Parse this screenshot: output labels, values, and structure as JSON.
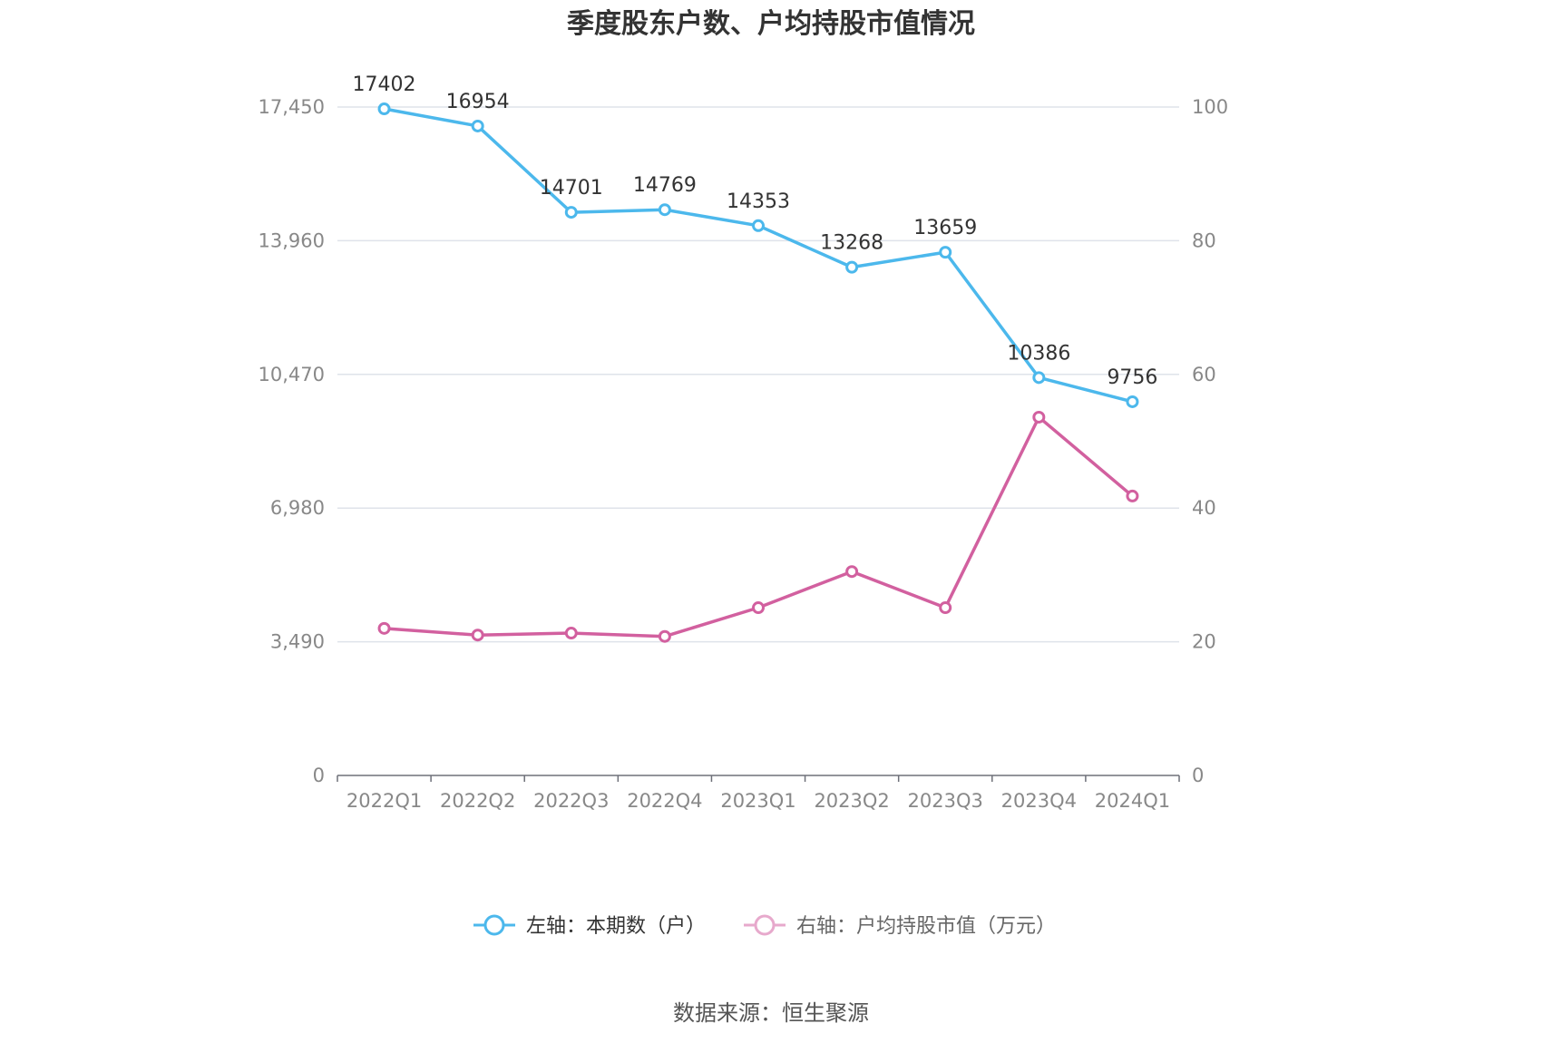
{
  "chart_data": {
    "type": "line",
    "title": "季度股东户数、户均持股市值情况",
    "categories": [
      "2022Q1",
      "2022Q2",
      "2022Q3",
      "2022Q4",
      "2023Q1",
      "2023Q2",
      "2023Q3",
      "2023Q4",
      "2024Q1"
    ],
    "left_axis": {
      "ticks": [
        "0",
        "3,490",
        "6,980",
        "10,470",
        "13,960",
        "17,450"
      ],
      "ylim": [
        0,
        17450
      ]
    },
    "right_axis": {
      "ticks": [
        "0",
        "20",
        "40",
        "60",
        "80",
        "100"
      ],
      "ylim": [
        0,
        100
      ]
    },
    "series": [
      {
        "name": "左轴：本期数（户）",
        "axis": "left",
        "color": "#4cb8ec",
        "values": [
          17402,
          16954,
          14701,
          14769,
          14353,
          13268,
          13659,
          10386,
          9756
        ],
        "labels": [
          "17402",
          "16954",
          "14701",
          "14769",
          "14353",
          "13268",
          "13659",
          "10386",
          "9756"
        ]
      },
      {
        "name": "右轴：户均持股市值（万元）",
        "axis": "right",
        "color": "#d2609f",
        "values": [
          22.0,
          21.0,
          21.3,
          20.8,
          25.1,
          30.5,
          25.1,
          53.6,
          41.8
        ]
      }
    ],
    "grid": true,
    "legend_position": "bottom"
  },
  "footer": {
    "source": "数据来源：恒生聚源"
  }
}
